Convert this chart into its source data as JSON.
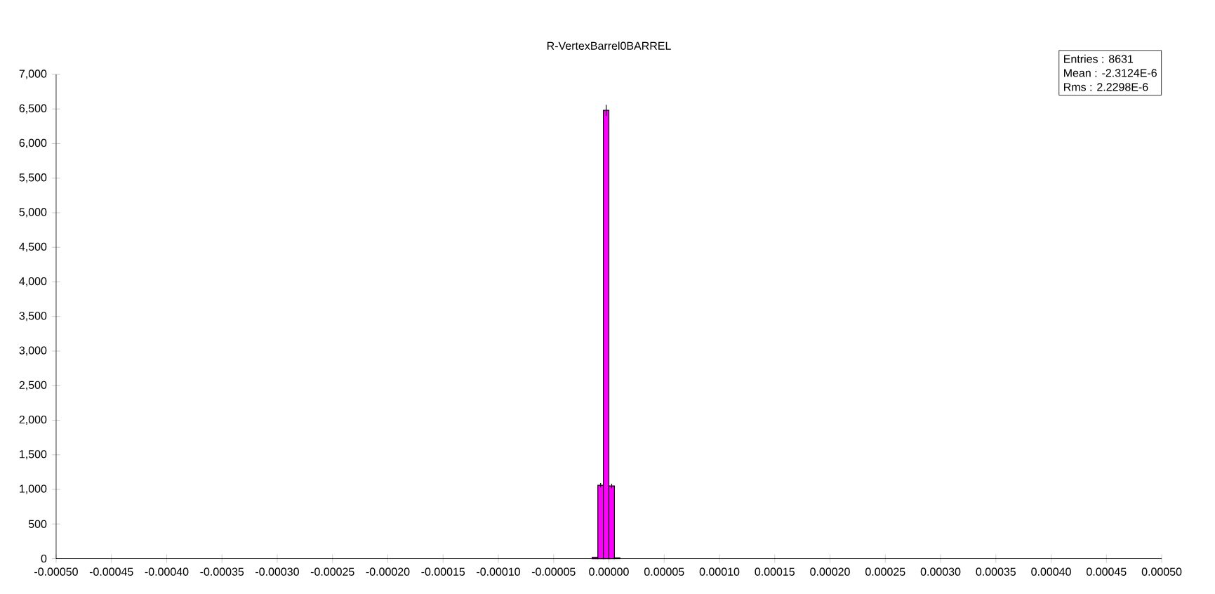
{
  "chart_data": {
    "type": "histogram",
    "title": "R-VertexBarrel0BARREL",
    "bins": [
      -1.5e-05,
      -1e-05,
      -5e-06,
      0,
      5e-06,
      1e-05
    ],
    "values": [
      20,
      1060,
      6480,
      1050,
      10
    ],
    "errors": [
      null,
      32,
      80,
      32,
      null
    ],
    "color": "#ff00ff",
    "xlim": [
      -0.0005,
      0.0005
    ],
    "xticks": [
      {
        "value": -0.0005,
        "label": "-0.00050"
      },
      {
        "value": -0.00045,
        "label": "-0.00045"
      },
      {
        "value": -0.0004,
        "label": "-0.00040"
      },
      {
        "value": -0.00035,
        "label": "-0.00035"
      },
      {
        "value": -0.0003,
        "label": "-0.00030"
      },
      {
        "value": -0.00025,
        "label": "-0.00025"
      },
      {
        "value": -0.0002,
        "label": "-0.00020"
      },
      {
        "value": -0.00015,
        "label": "-0.00015"
      },
      {
        "value": -0.0001,
        "label": "-0.00010"
      },
      {
        "value": -5e-05,
        "label": "-0.00005"
      },
      {
        "value": 0,
        "label": "0.00000"
      },
      {
        "value": 5e-05,
        "label": "0.00005"
      },
      {
        "value": 0.0001,
        "label": "0.00010"
      },
      {
        "value": 0.00015,
        "label": "0.00015"
      },
      {
        "value": 0.0002,
        "label": "0.00020"
      },
      {
        "value": 0.00025,
        "label": "0.00025"
      },
      {
        "value": 0.0003,
        "label": "0.00030"
      },
      {
        "value": 0.00035,
        "label": "0.00035"
      },
      {
        "value": 0.0004,
        "label": "0.00040"
      },
      {
        "value": 0.00045,
        "label": "0.00045"
      },
      {
        "value": 0.0005,
        "label": "0.00050"
      }
    ],
    "ylim": [
      0,
      7000
    ],
    "yticks": [
      0,
      500,
      {
        "value": 1000,
        "label": "1,000"
      },
      {
        "value": 1500,
        "label": "1,500"
      },
      {
        "value": 2000,
        "label": "2,000"
      },
      {
        "value": 2500,
        "label": "2,500"
      },
      {
        "value": 3000,
        "label": "3,000"
      },
      {
        "value": 3500,
        "label": "3,500"
      },
      {
        "value": 4000,
        "label": "4,000"
      },
      {
        "value": 4500,
        "label": "4,500"
      },
      {
        "value": 5000,
        "label": "5,000"
      },
      {
        "value": 5500,
        "label": "5,500"
      },
      {
        "value": 6000,
        "label": "6,000"
      },
      {
        "value": 6500,
        "label": "6,500"
      },
      {
        "value": 7000,
        "label": "7,000"
      }
    ],
    "annotations": [
      "Entries :      8631",
      "Mean : -2.3124E-6",
      "Rms :  2.2298E-6"
    ],
    "grid": false
  }
}
